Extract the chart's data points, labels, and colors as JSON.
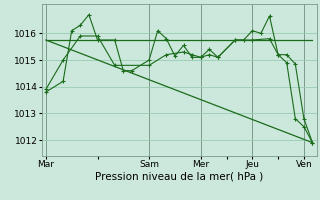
{
  "bg_color": "#cce8dc",
  "grid_color": "#99ccb3",
  "line_color": "#1a6b1a",
  "vline_color": "#7a9a8a",
  "xlabel": "Pression niveau de la mer( hPa )",
  "xlabel_fontsize": 7.5,
  "tick_fontsize": 6.5,
  "ylim": [
    1011.4,
    1017.1
  ],
  "yticks": [
    1012,
    1013,
    1014,
    1015,
    1016
  ],
  "xtick_labels": [
    "Mar",
    "",
    "Sam",
    "Mer",
    "",
    "Jeu",
    "",
    "Ven"
  ],
  "xtick_positions": [
    0,
    6,
    12,
    18,
    21,
    24,
    27,
    30
  ],
  "vline_positions": [
    0,
    12,
    18,
    24,
    30
  ],
  "series1_jagged": {
    "x": [
      0,
      2,
      3,
      4,
      5,
      6,
      8,
      9,
      10,
      12,
      13,
      14,
      15,
      16,
      17,
      18,
      19,
      20,
      22,
      23,
      24,
      25,
      26,
      27,
      28,
      29,
      30,
      31
    ],
    "y": [
      1013.8,
      1014.2,
      1016.1,
      1016.3,
      1016.7,
      1015.75,
      1015.75,
      1014.6,
      1014.6,
      1015.0,
      1016.1,
      1015.8,
      1015.15,
      1015.55,
      1015.1,
      1015.1,
      1015.4,
      1015.1,
      1015.75,
      1015.75,
      1016.1,
      1016.0,
      1016.65,
      1015.2,
      1015.2,
      1014.85,
      1012.8,
      1011.9
    ]
  },
  "series2_flat": {
    "x": [
      0,
      31
    ],
    "y": [
      1015.75,
      1015.75
    ]
  },
  "series3_diagonal": {
    "x": [
      0,
      31
    ],
    "y": [
      1015.75,
      1011.9
    ]
  },
  "series4_jagged2": {
    "x": [
      0,
      2,
      4,
      6,
      8,
      12,
      14,
      16,
      17,
      18,
      19,
      20,
      22,
      24,
      26,
      27,
      28,
      29,
      30,
      31
    ],
    "y": [
      1013.9,
      1015.0,
      1015.9,
      1015.9,
      1014.8,
      1014.8,
      1015.2,
      1015.3,
      1015.2,
      1015.1,
      1015.2,
      1015.1,
      1015.75,
      1015.75,
      1015.8,
      1015.2,
      1014.9,
      1012.8,
      1012.5,
      1011.9
    ]
  }
}
